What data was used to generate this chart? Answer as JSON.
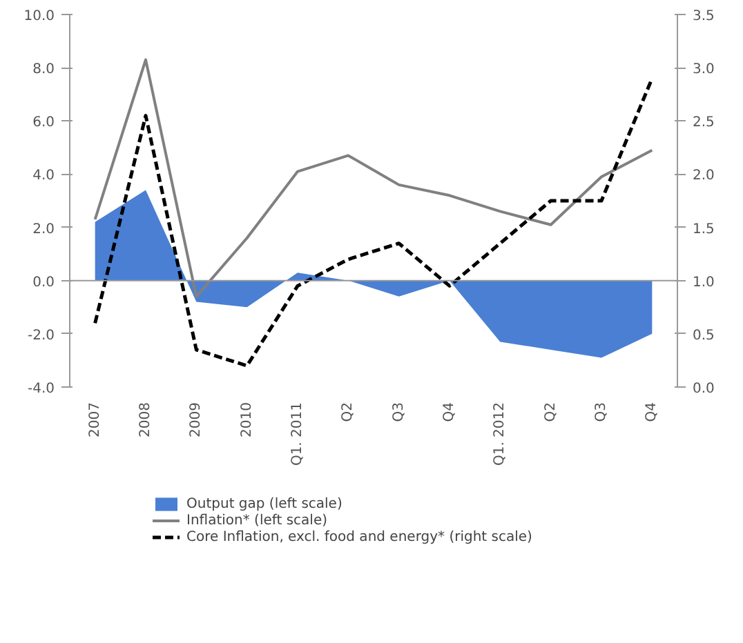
{
  "chart_data": {
    "type": "line",
    "categories": [
      "2007",
      "2008",
      "2009",
      "2010",
      "Q1. 2011",
      "Q2",
      "Q3",
      "Q4",
      "Q1. 2012",
      "Q2",
      "Q3",
      "Q4"
    ],
    "series": [
      {
        "name": "Output gap (left scale)",
        "type": "area",
        "color": "#4a7fd4",
        "values": [
          2.2,
          3.4,
          -0.8,
          -1.0,
          0.3,
          0.0,
          -0.6,
          0.0,
          -2.3,
          -2.6,
          -2.9,
          -2.0
        ]
      },
      {
        "name": "Inflation* (left scale)",
        "color": "#808080",
        "line_style": "solid",
        "values": [
          2.3,
          8.3,
          -0.6,
          1.6,
          4.1,
          4.7,
          3.6,
          3.2,
          2.6,
          2.1,
          3.9,
          4.9
        ]
      },
      {
        "name": "Core Inflation, excl. food and energy* (right scale)",
        "axis": "y2",
        "color": "#000000",
        "line_style": "dashed",
        "values": [
          0.6,
          2.55,
          0.35,
          0.2,
          0.95,
          1.2,
          1.35,
          0.95,
          1.35,
          1.75,
          1.75,
          2.9
        ]
      }
    ],
    "ylim": [
      -4,
      10
    ],
    "yticks": [
      {
        "value": -4,
        "label": "-4.0"
      },
      {
        "value": -2,
        "label": "-2.0"
      },
      {
        "value": 0,
        "label": "0.0"
      },
      {
        "value": 2,
        "label": "2.0"
      },
      {
        "value": 4,
        "label": "4.0"
      },
      {
        "value": 6,
        "label": "6.0"
      },
      {
        "value": 8,
        "label": "8.0"
      },
      {
        "value": 10,
        "label": "10.0"
      }
    ],
    "y2lim": [
      0,
      3.5
    ],
    "y2ticks": [
      {
        "value": 0,
        "label": "0.0"
      },
      {
        "value": 0.5,
        "label": "0.5"
      },
      {
        "value": 1,
        "label": "1.0"
      },
      {
        "value": 1.5,
        "label": "1.5"
      },
      {
        "value": 2,
        "label": "2.0"
      },
      {
        "value": 2.5,
        "label": "2.5"
      },
      {
        "value": 3,
        "label": "3.0"
      },
      {
        "value": 3.5,
        "label": "3.5"
      }
    ],
    "ref_lines": [
      {
        "axis": "y",
        "value": 0,
        "color": "#999999"
      }
    ],
    "grid": false,
    "legend": "bottom"
  }
}
